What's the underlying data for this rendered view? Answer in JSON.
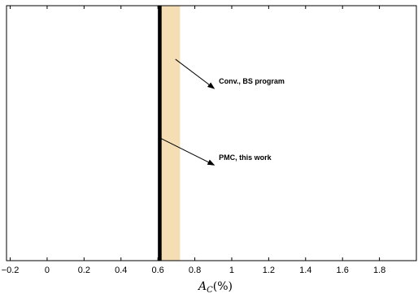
{
  "chart_data": {
    "type": "interval",
    "xlabel": {
      "symbol": "A",
      "subscript": "C",
      "unit": "(%)"
    },
    "x_ticks": [
      -0.2,
      0,
      0.2,
      0.4,
      0.6,
      0.8,
      1,
      1.2,
      1.4,
      1.6,
      1.8
    ],
    "x_tick_labels": [
      "−0.2",
      "0",
      "0.2",
      "0.4",
      "0.6",
      "0.8",
      "1",
      "1.2",
      "1.4",
      "1.6",
      "1.8"
    ],
    "xlim": [
      -0.22,
      2.0
    ],
    "y_ticks_shown": false,
    "bands": [
      {
        "label": "Conv., BS program",
        "x_start": 0.615,
        "x_end": 0.72,
        "color": "#f5deb3"
      },
      {
        "label": "PMC, this work",
        "x_start": 0.6,
        "x_end": 0.62,
        "color": "#000000"
      }
    ],
    "annotations": [
      {
        "text": "Conv., BS program",
        "x": 0.93,
        "y": 0.695,
        "arrow_from": [
          0.905,
          0.675
        ],
        "arrow_to": [
          0.695,
          0.79
        ]
      },
      {
        "text": "PMC, this work",
        "x": 0.93,
        "y": 0.395,
        "arrow_from": [
          0.905,
          0.375
        ],
        "arrow_to": [
          0.615,
          0.48
        ]
      }
    ]
  }
}
